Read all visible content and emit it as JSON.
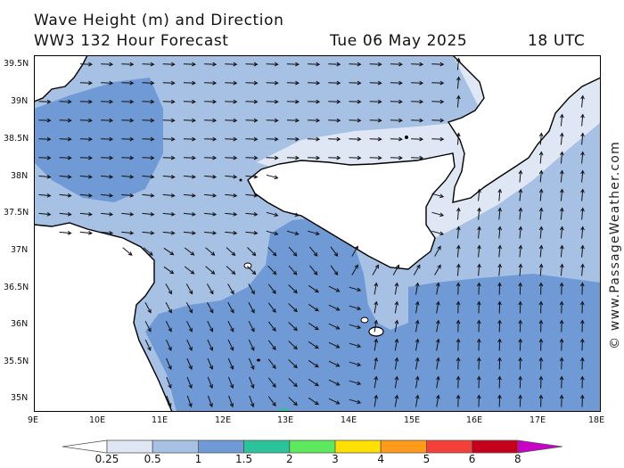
{
  "header": {
    "line1": "Wave Height (m) and Direction",
    "line2_model": "WW3 132 Hour Forecast",
    "line2_date": "Tue 06 May 2025",
    "line2_time": "18 UTC"
  },
  "map": {
    "lat_labels": [
      "39.5N",
      "39N",
      "38.5N",
      "38N",
      "37.5N",
      "37N",
      "36.5N",
      "36N",
      "35.5N",
      "35N"
    ],
    "lon_labels": [
      "9E",
      "10E",
      "11E",
      "12E",
      "13E",
      "14E",
      "15E",
      "16E",
      "17E",
      "18E"
    ],
    "colors": {
      "land": "#ffffff",
      "wave_0_25": "#dfe7f5",
      "wave_0_5": "#a7c1e4",
      "wave_1": "#6f9ad6",
      "wave_1_5": "#2bc49a",
      "coastline": "#000000",
      "arrow": "#111111"
    }
  },
  "watermark": "© www.PassageWeather.com",
  "legend": {
    "labels": [
      "0.25",
      "0.5",
      "1",
      "1.5",
      "2",
      "3",
      "4",
      "5",
      "6",
      "8"
    ],
    "colors": [
      "#dfe7f5",
      "#a7c1e4",
      "#6f9ad6",
      "#2bc49a",
      "#5de85d",
      "#ffe000",
      "#ff9a1a",
      "#f5403a",
      "#c4001a",
      "#c800c8"
    ]
  }
}
